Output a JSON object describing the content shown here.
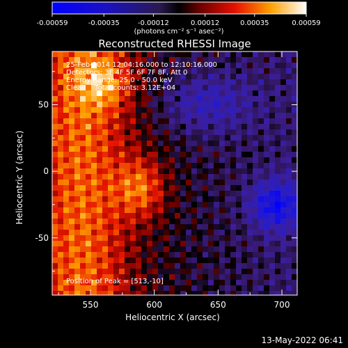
{
  "chart_data": {
    "type": "heatmap",
    "title": "Reconstructed RHESSI Image",
    "xlabel": "Heliocentric X (arcsec)",
    "ylabel": "Heliocentric Y (arcsec)",
    "xlim": [
      520,
      712
    ],
    "ylim": [
      -93,
      90
    ],
    "x_ticks": [
      550,
      600,
      650,
      700
    ],
    "y_ticks": [
      50,
      0,
      -50
    ],
    "colorbar": {
      "min": -0.00059,
      "max": 0.00059,
      "tick_values": [
        -0.00059,
        -0.00035,
        -0.00012,
        0.00012,
        0.00035,
        0.00059
      ],
      "tick_labels": [
        "-0.00059",
        "-0.00035",
        "-0.00012",
        "0.00012",
        "0.00035",
        "0.00059"
      ],
      "unit_label": "(photons cm⁻² s⁻¹ asec⁻²)"
    },
    "annotations": [
      "25-Feb-2014 12:04:16.000 to 12:10:16.000",
      "Detectors: 3F 4F 5F 6F 7F 8F, Att 0",
      "Energy Range: 25.0 - 50.0 keV",
      "Clean    Total counts: 3.12E+04"
    ],
    "peak_label": "Position of Peak = [513,-10]",
    "timestamp": "13-May-2022 06:41",
    "grid": false
  }
}
